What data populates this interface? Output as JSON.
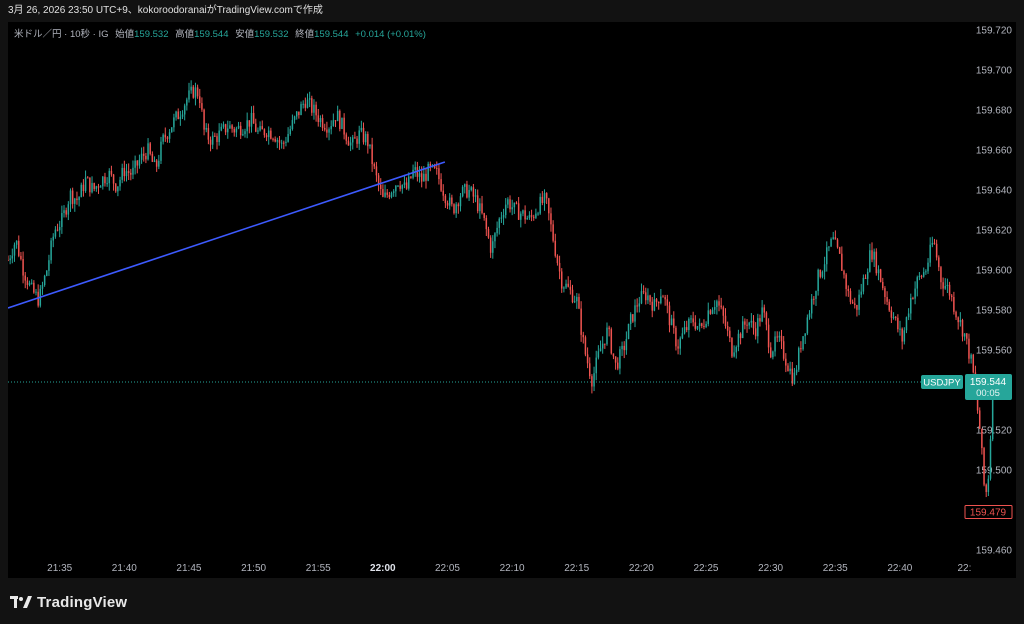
{
  "header": {
    "caption": "3月 26, 2026 23:50 UTC+9、kokoroodoranaiがTradingView.comで作成"
  },
  "legend": {
    "symbol": "米ドル／円 · 10秒 · IG",
    "open_label": "始値",
    "open": "159.532",
    "high_label": "高値",
    "high": "159.544",
    "low_label": "安値",
    "low": "159.532",
    "close_label": "終値",
    "close": "159.544",
    "change": "+0.014 (+0.01%)"
  },
  "current_price": {
    "symbol": "USDJPY",
    "price": "159.544",
    "countdown": "00:05",
    "value": 159.544
  },
  "low_marker": {
    "price": "159.479",
    "value": 159.479
  },
  "footer": {
    "brand": "TradingView"
  },
  "colors": {
    "up": "#26a69a",
    "down": "#ef5350",
    "trendline": "#3d5afe",
    "background": "#000000"
  },
  "chart_data": {
    "type": "candlestick",
    "interval": "10s",
    "ylim": [
      159.456,
      159.724
    ],
    "y_ticks": [
      "159.720",
      "159.700",
      "159.680",
      "159.660",
      "159.640",
      "159.620",
      "159.600",
      "159.580",
      "159.560",
      "159.540",
      "159.520",
      "159.500",
      "159.480",
      "159.460"
    ],
    "x_ticks": [
      "21:35",
      "21:40",
      "21:45",
      "21:50",
      "21:55",
      "22:00",
      "22:05",
      "22:10",
      "22:15",
      "22:20",
      "22:25",
      "22:30",
      "22:35",
      "22:40",
      "22:"
    ],
    "x_tick_minutes": [
      35,
      40,
      45,
      50,
      55,
      60,
      65,
      70,
      75,
      80,
      85,
      90,
      95,
      100,
      105
    ],
    "x_range_minutes": [
      31.0,
      104.5
    ],
    "close_path": [
      [
        31.0,
        159.605
      ],
      [
        31.6,
        159.615
      ],
      [
        32.2,
        159.6
      ],
      [
        32.8,
        159.59
      ],
      [
        33.4,
        159.585
      ],
      [
        34.0,
        159.6
      ],
      [
        34.6,
        159.62
      ],
      [
        35.2,
        159.625
      ],
      [
        35.8,
        159.638
      ],
      [
        36.4,
        159.635
      ],
      [
        37.0,
        159.645
      ],
      [
        37.6,
        159.64
      ],
      [
        38.2,
        159.645
      ],
      [
        38.8,
        159.648
      ],
      [
        39.4,
        159.642
      ],
      [
        40.0,
        159.65
      ],
      [
        40.6,
        159.648
      ],
      [
        41.2,
        159.655
      ],
      [
        41.8,
        159.66
      ],
      [
        42.4,
        159.65
      ],
      [
        43.0,
        159.665
      ],
      [
        43.6,
        159.672
      ],
      [
        44.2,
        159.678
      ],
      [
        44.8,
        159.685
      ],
      [
        45.4,
        159.69
      ],
      [
        45.8,
        159.688
      ],
      [
        46.2,
        159.668
      ],
      [
        46.8,
        159.665
      ],
      [
        47.4,
        159.668
      ],
      [
        48.0,
        159.672
      ],
      [
        48.6,
        159.67
      ],
      [
        49.2,
        159.672
      ],
      [
        49.8,
        159.675
      ],
      [
        50.4,
        159.668
      ],
      [
        51.0,
        159.67
      ],
      [
        51.6,
        159.668
      ],
      [
        52.2,
        159.662
      ],
      [
        52.8,
        159.67
      ],
      [
        53.4,
        159.678
      ],
      [
        54.0,
        159.685
      ],
      [
        54.6,
        159.68
      ],
      [
        55.2,
        159.675
      ],
      [
        55.8,
        159.672
      ],
      [
        56.4,
        159.678
      ],
      [
        57.0,
        159.67
      ],
      [
        57.6,
        159.662
      ],
      [
        58.2,
        159.668
      ],
      [
        58.8,
        159.665
      ],
      [
        59.4,
        159.648
      ],
      [
        60.0,
        159.635
      ],
      [
        60.6,
        159.64
      ],
      [
        61.2,
        159.645
      ],
      [
        61.8,
        159.64
      ],
      [
        62.4,
        159.65
      ],
      [
        63.0,
        159.645
      ],
      [
        63.6,
        159.65
      ],
      [
        64.2,
        159.648
      ],
      [
        64.8,
        159.638
      ],
      [
        65.4,
        159.63
      ],
      [
        66.0,
        159.638
      ],
      [
        66.6,
        159.64
      ],
      [
        67.2,
        159.635
      ],
      [
        67.8,
        159.625
      ],
      [
        68.4,
        159.61
      ],
      [
        69.0,
        159.625
      ],
      [
        69.6,
        159.635
      ],
      [
        70.2,
        159.63
      ],
      [
        70.8,
        159.628
      ],
      [
        71.4,
        159.625
      ],
      [
        72.0,
        159.632
      ],
      [
        72.6,
        159.635
      ],
      [
        73.2,
        159.615
      ],
      [
        73.8,
        159.595
      ],
      [
        74.4,
        159.59
      ],
      [
        75.0,
        159.585
      ],
      [
        75.6,
        159.56
      ],
      [
        76.2,
        159.545
      ],
      [
        76.8,
        159.56
      ],
      [
        77.4,
        159.57
      ],
      [
        78.0,
        159.552
      ],
      [
        78.6,
        159.56
      ],
      [
        79.2,
        159.575
      ],
      [
        79.8,
        159.585
      ],
      [
        80.4,
        159.588
      ],
      [
        81.0,
        159.582
      ],
      [
        81.6,
        159.59
      ],
      [
        82.2,
        159.575
      ],
      [
        82.8,
        159.562
      ],
      [
        83.4,
        159.57
      ],
      [
        84.0,
        159.575
      ],
      [
        84.6,
        159.57
      ],
      [
        85.2,
        159.58
      ],
      [
        85.8,
        159.585
      ],
      [
        86.4,
        159.575
      ],
      [
        87.0,
        159.56
      ],
      [
        87.6,
        159.568
      ],
      [
        88.2,
        159.575
      ],
      [
        88.8,
        159.57
      ],
      [
        89.4,
        159.58
      ],
      [
        90.0,
        159.56
      ],
      [
        90.6,
        159.565
      ],
      [
        91.2,
        159.555
      ],
      [
        91.8,
        159.545
      ],
      [
        92.4,
        159.565
      ],
      [
        93.0,
        159.58
      ],
      [
        93.6,
        159.595
      ],
      [
        94.2,
        159.605
      ],
      [
        94.8,
        159.615
      ],
      [
        95.4,
        159.605
      ],
      [
        96.0,
        159.588
      ],
      [
        96.6,
        159.58
      ],
      [
        97.2,
        159.595
      ],
      [
        97.8,
        159.61
      ],
      [
        98.4,
        159.598
      ],
      [
        99.0,
        159.585
      ],
      [
        99.6,
        159.575
      ],
      [
        100.2,
        159.565
      ],
      [
        100.8,
        159.585
      ],
      [
        101.4,
        159.595
      ],
      [
        102.0,
        159.6
      ],
      [
        102.6,
        159.615
      ],
      [
        103.2,
        159.595
      ],
      [
        103.8,
        159.59
      ],
      [
        104.4,
        159.578
      ],
      [
        105.0,
        159.568
      ],
      [
        105.6,
        159.552
      ],
      [
        106.2,
        159.52
      ],
      [
        106.6,
        159.485
      ],
      [
        106.9,
        159.5
      ],
      [
        107.2,
        159.544
      ]
    ],
    "trendline": {
      "start": [
        31.0,
        159.581
      ],
      "end": [
        64.8,
        159.654
      ]
    },
    "last_price": 159.544,
    "session_low_label": 159.479
  }
}
